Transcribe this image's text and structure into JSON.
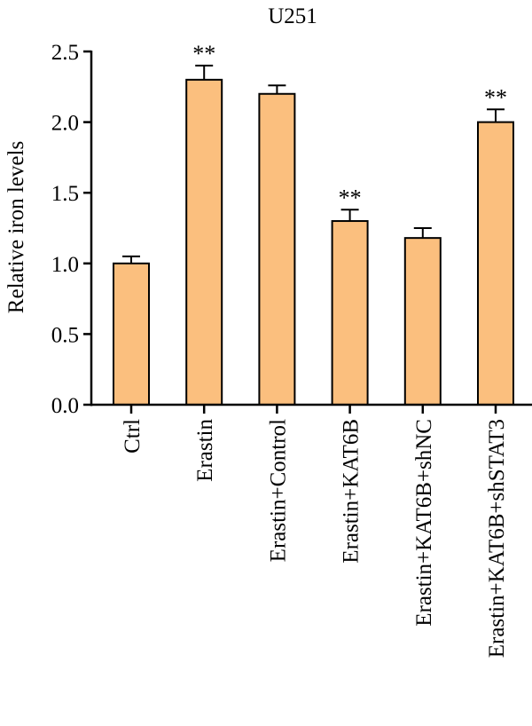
{
  "chart_data": {
    "type": "bar",
    "title": "U251",
    "xlabel": "",
    "ylabel": "Relative iron levels",
    "categories": [
      "Ctrl",
      "Erastin",
      "Erastin+Control",
      "Erastin+KAT6B",
      "Erastin+KAT6B+shNC",
      "Erastin+KAT6B+shSTAT3"
    ],
    "values": [
      1.0,
      2.3,
      2.2,
      1.3,
      1.18,
      2.0
    ],
    "errors": [
      0.05,
      0.1,
      0.06,
      0.08,
      0.07,
      0.09
    ],
    "significance": [
      "",
      "**",
      "",
      "**",
      "",
      "**"
    ],
    "ylim": [
      0,
      2.5
    ],
    "yticks": [
      "0.0",
      "0.5",
      "1.0",
      "1.5",
      "2.0",
      "2.5"
    ],
    "grid": false,
    "bar_color": "#FBBF7E",
    "bar_edge_color": "#000000"
  }
}
